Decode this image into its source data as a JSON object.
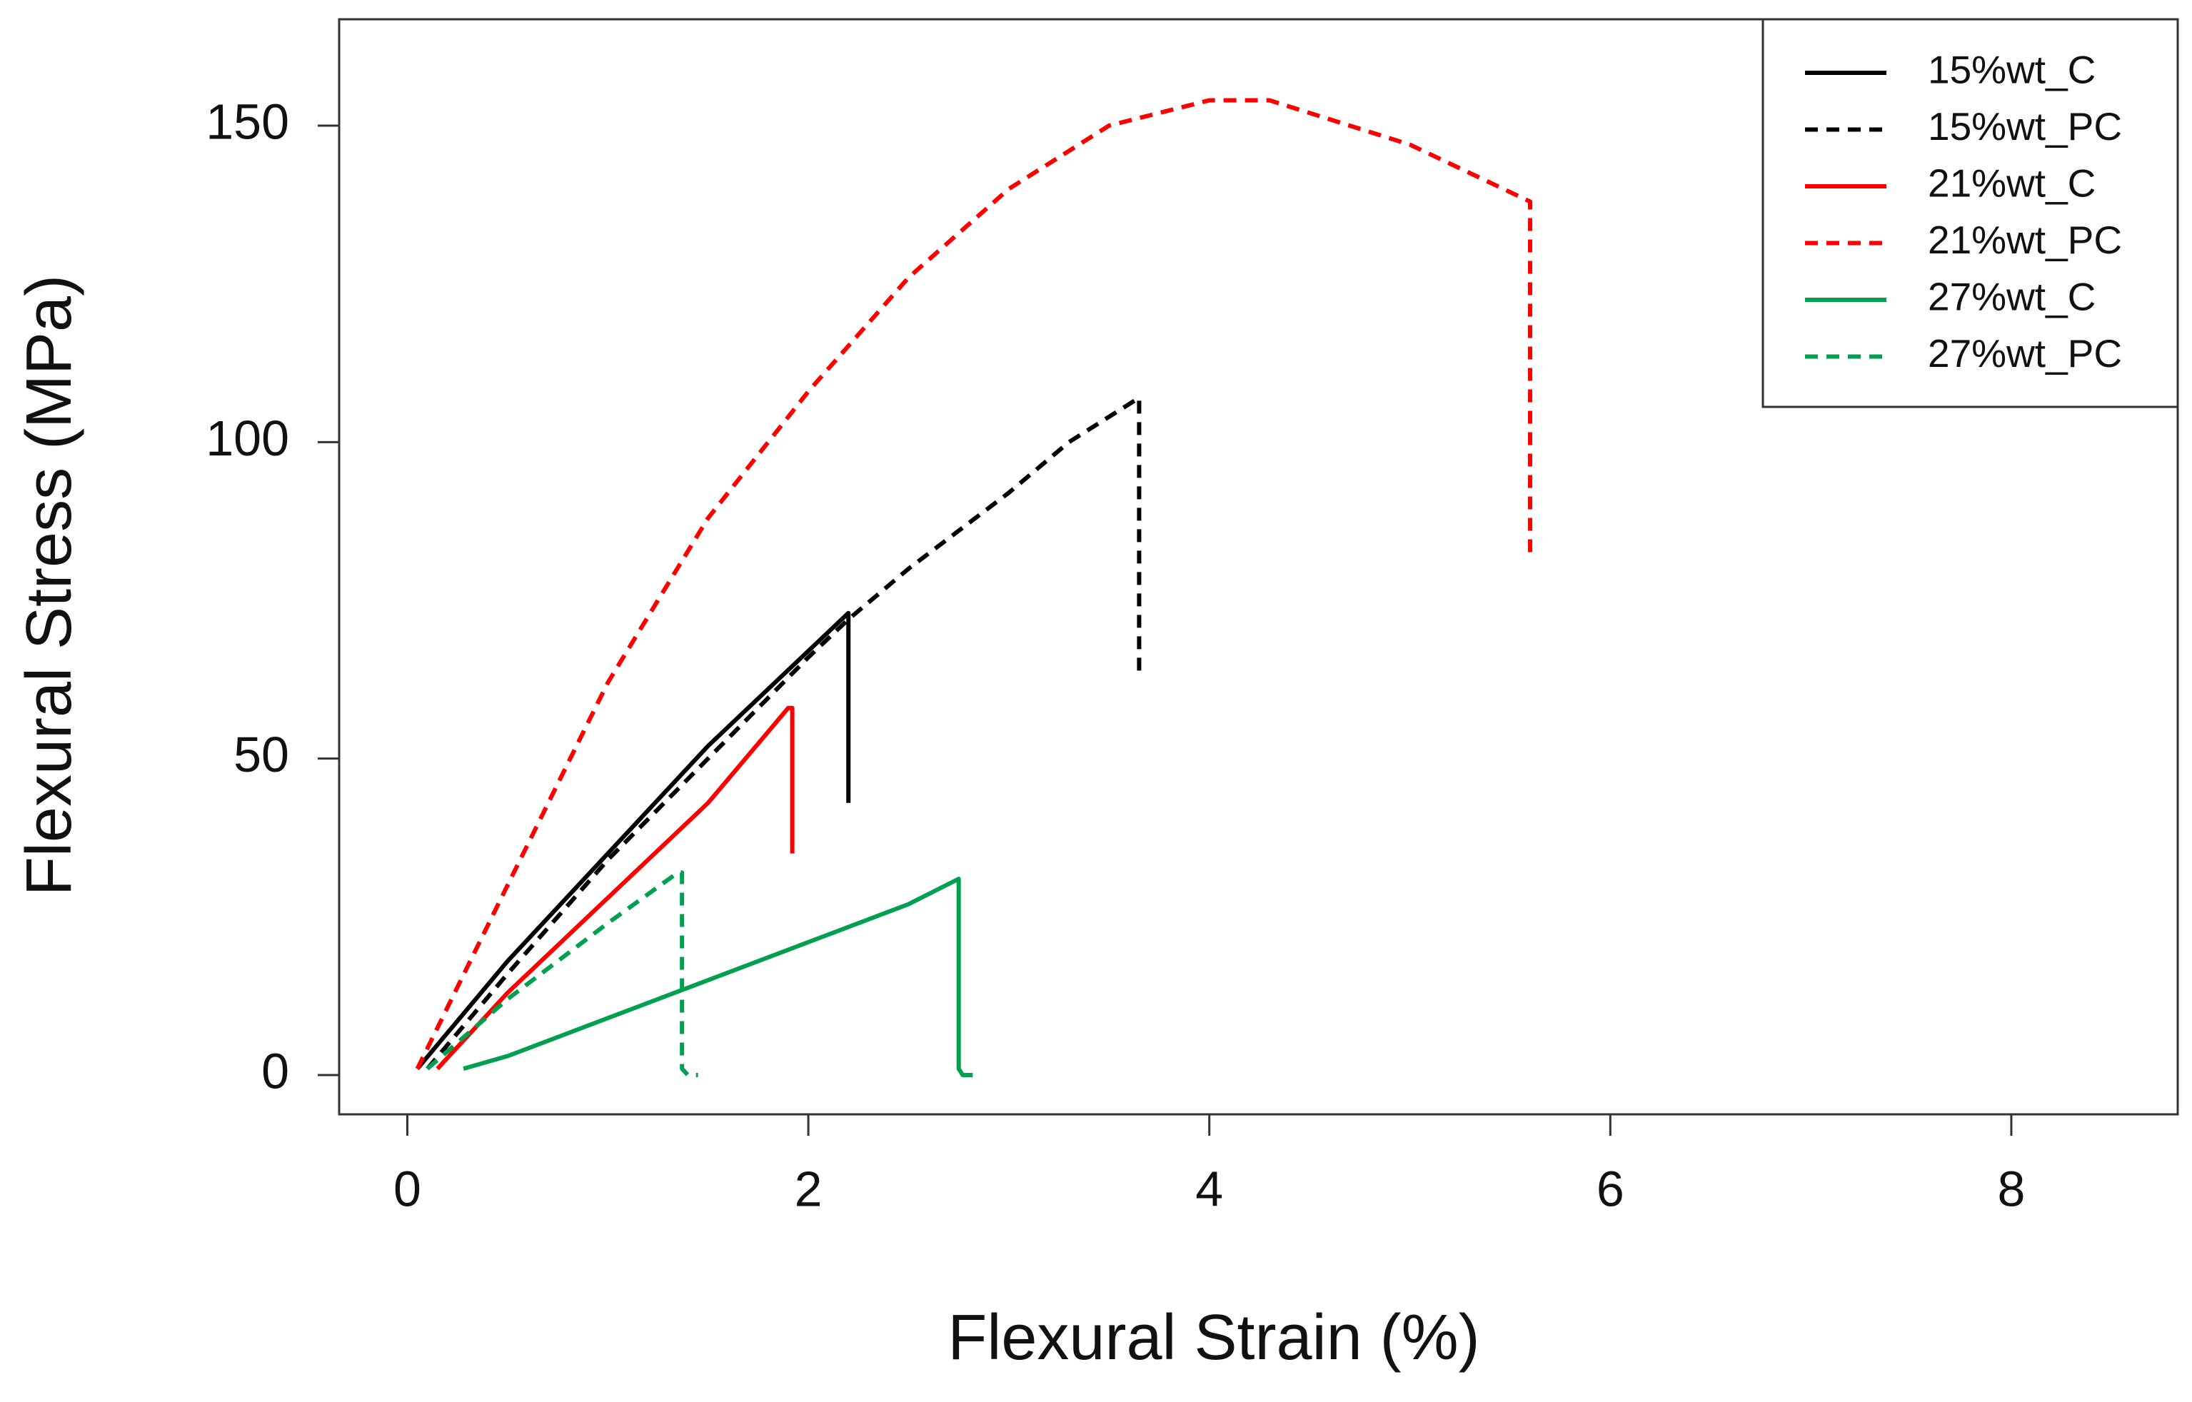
{
  "chart_data": {
    "type": "line",
    "x_label": "Flexural Strain (%)",
    "y_label": "Flexural Stress (MPa)",
    "xlim": [
      -0.34,
      8.83
    ],
    "ylim": [
      -6.2,
      166.8
    ],
    "xticks": [
      0,
      2,
      4,
      6,
      8
    ],
    "yticks": [
      0,
      50,
      100,
      150
    ],
    "legend": "top-right",
    "series": [
      {
        "name": "15%wt_C",
        "color": "#000000",
        "dashed": false,
        "x": [
          0.05,
          0.5,
          1,
          1.5,
          2,
          2.2,
          2.2
        ],
        "values": [
          1,
          18,
          35,
          52,
          67,
          73,
          43
        ]
      },
      {
        "name": "15%wt_PC",
        "color": "#000000",
        "dashed": true,
        "x": [
          0.1,
          0.5,
          1,
          1.5,
          2,
          2.2,
          2.5,
          3,
          3.3,
          3.65,
          3.65
        ],
        "values": [
          1,
          16,
          34,
          50,
          66,
          72,
          80,
          92,
          100,
          107,
          63
        ]
      },
      {
        "name": "21%wt_C",
        "color": "#ff0000",
        "dashed": false,
        "x": [
          0.15,
          0.5,
          1,
          1.5,
          1.9,
          1.92,
          1.92
        ],
        "values": [
          1,
          13,
          28,
          43,
          58,
          58,
          35
        ]
      },
      {
        "name": "21%wt_PC",
        "color": "#ff0000",
        "dashed": true,
        "x": [
          0.05,
          0.5,
          1,
          1.5,
          2,
          2.5,
          3,
          3.5,
          4,
          4.3,
          5,
          5.6,
          5.6
        ],
        "values": [
          1,
          30,
          62,
          88,
          108,
          126,
          140,
          150,
          154,
          154,
          147,
          138,
          82
        ]
      },
      {
        "name": "27%wt_C",
        "color": "#00a050",
        "dashed": false,
        "x": [
          0.28,
          0.5,
          1,
          1.5,
          2,
          2.5,
          2.75,
          2.75,
          2.77,
          2.82
        ],
        "values": [
          1,
          3,
          9,
          15,
          21,
          27,
          31,
          1,
          0,
          0
        ]
      },
      {
        "name": "27%wt_PC",
        "color": "#00a050",
        "dashed": true,
        "x": [
          0.1,
          0.5,
          1,
          1.35,
          1.37,
          1.37,
          1.4,
          1.45
        ],
        "values": [
          1,
          12,
          24,
          32,
          32,
          1,
          0,
          0
        ]
      }
    ]
  }
}
